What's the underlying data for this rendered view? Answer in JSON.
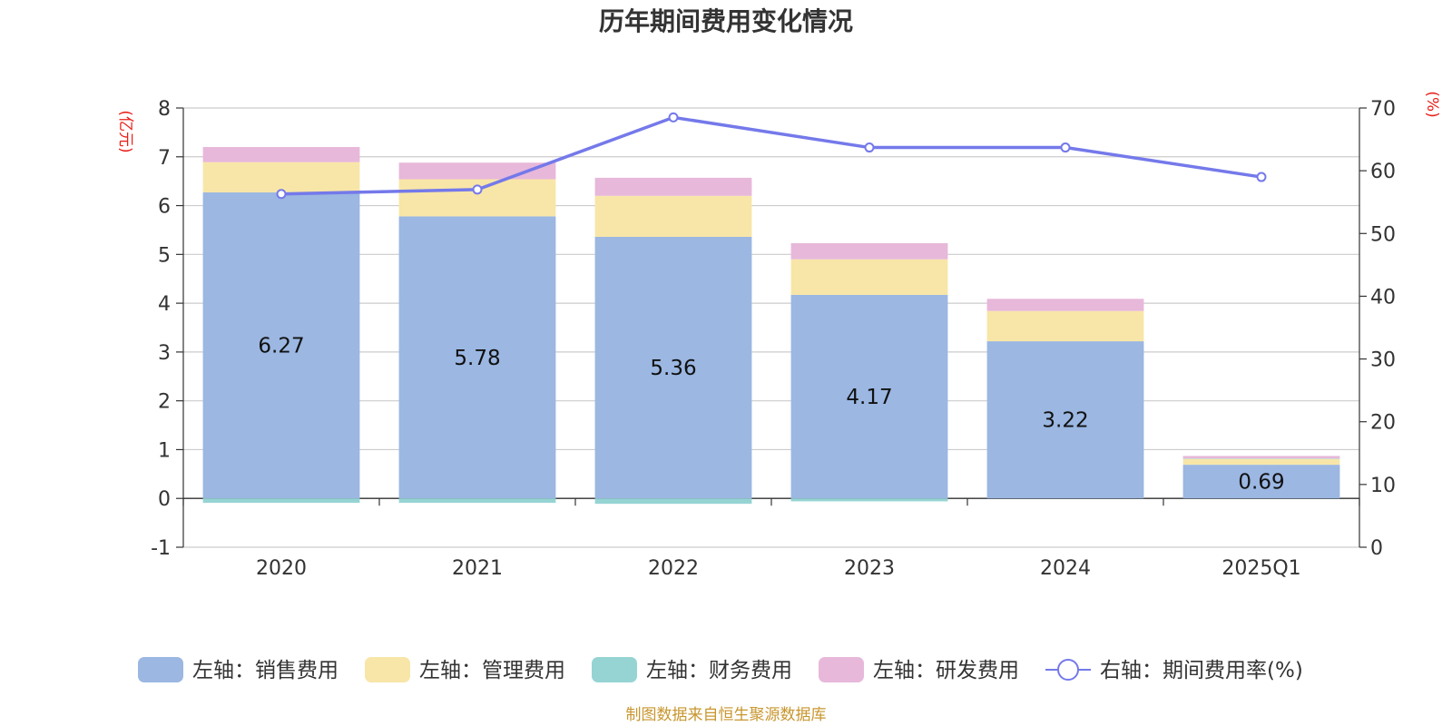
{
  "chart_data": {
    "type": "bar",
    "title": "历年期间费用变化情况",
    "categories": [
      "2020",
      "2021",
      "2022",
      "2023",
      "2024",
      "2025Q1"
    ],
    "left_axis": {
      "unit": "(亿元)",
      "ylim": [
        -1,
        8
      ],
      "ticks": [
        -1,
        0,
        1,
        2,
        3,
        4,
        5,
        6,
        7,
        8
      ]
    },
    "right_axis": {
      "unit": "(%)",
      "ylim": [
        0,
        70
      ],
      "ticks": [
        0,
        10,
        20,
        30,
        40,
        50,
        60,
        70
      ]
    },
    "series": [
      {
        "name": "左轴：销售费用",
        "axis": "left",
        "kind": "bar",
        "color": "#9bb7e2",
        "values": [
          6.27,
          5.78,
          5.36,
          4.17,
          3.22,
          0.69
        ],
        "labels": [
          "6.27",
          "5.78",
          "5.36",
          "4.17",
          "3.22",
          "0.69"
        ]
      },
      {
        "name": "左轴：管理费用",
        "axis": "left",
        "kind": "bar",
        "color": "#f8e6a8",
        "values": [
          0.62,
          0.76,
          0.84,
          0.73,
          0.62,
          0.12
        ]
      },
      {
        "name": "左轴：财务费用",
        "axis": "left",
        "kind": "bar",
        "color": "#96d4d4",
        "values": [
          -0.09,
          -0.09,
          -0.11,
          -0.06,
          0.0,
          0.01
        ]
      },
      {
        "name": "左轴：研发费用",
        "axis": "left",
        "kind": "bar",
        "color": "#e7b8da",
        "values": [
          0.31,
          0.34,
          0.37,
          0.33,
          0.25,
          0.05
        ]
      },
      {
        "name": "右轴：期间费用率(%)",
        "axis": "right",
        "kind": "line",
        "color": "#7479ea",
        "values": [
          56.3,
          57.0,
          68.5,
          63.7,
          63.7,
          59.0
        ]
      }
    ],
    "grid": true,
    "legend_position": "bottom"
  },
  "footer": {
    "source": "制图数据来自恒生聚源数据库"
  }
}
